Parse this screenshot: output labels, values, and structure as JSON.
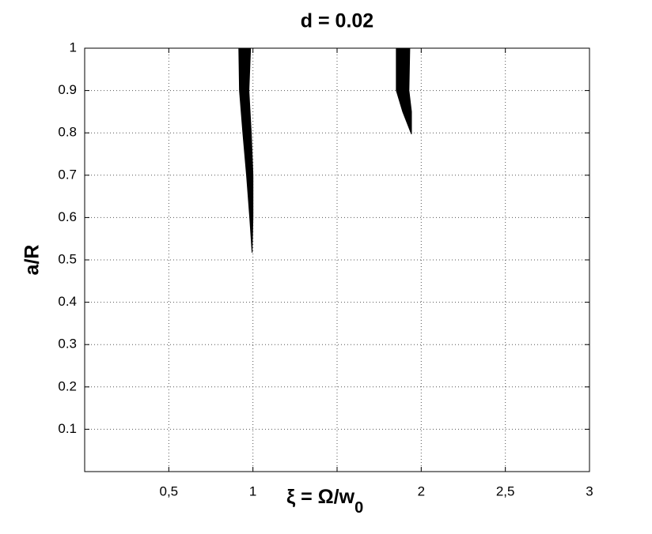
{
  "chart_data": {
    "type": "region",
    "title": "d = 0.02",
    "ylabel": "a/R",
    "xlabel": {
      "text": "ξ = Ω/w",
      "subscript": "0"
    },
    "xlim": [
      0,
      3
    ],
    "ylim": [
      0,
      1
    ],
    "xticks": [
      {
        "value": 0.5,
        "label": "0,5"
      },
      1,
      {
        "value": 1.5,
        "label": null
      },
      2,
      {
        "value": 2.5,
        "label": "2,5"
      },
      3
    ],
    "yticks": [
      0.1,
      0.2,
      0.3,
      0.4,
      0.5,
      0.6,
      0.7,
      0.8,
      0.9,
      1
    ],
    "grid": true,
    "color": "#000000",
    "regions": [
      {
        "x": [
          0.916,
          0.92,
          0.94,
          0.962,
          0.981,
          0.995,
          1.0,
          1.0,
          0.99,
          0.976,
          0.986
        ],
        "y": [
          1,
          0.9,
          0.8,
          0.7,
          0.6,
          0.517,
          0.6,
          0.7,
          0.8,
          0.9,
          1
        ]
      },
      {
        "x": [
          1.852,
          1.852,
          1.89,
          1.942,
          1.942,
          1.927,
          1.932
        ],
        "y": [
          1,
          0.9,
          0.85,
          0.797,
          0.85,
          0.9,
          1
        ]
      }
    ]
  }
}
